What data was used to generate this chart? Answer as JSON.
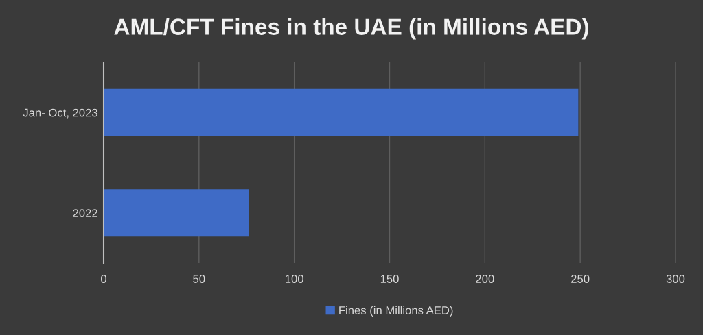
{
  "chart_data": {
    "type": "bar",
    "orientation": "horizontal",
    "title": "AML/CFT Fines in the UAE (in Millions AED)",
    "categories": [
      "Jan- Oct, 2023",
      "2022"
    ],
    "series": [
      {
        "name": "Fines (in Millions AED)",
        "color": "#3f6bc6",
        "values": [
          249,
          76
        ]
      }
    ],
    "xlim": [
      0,
      300
    ],
    "xticks": [
      0,
      50,
      100,
      150,
      200,
      250,
      300
    ],
    "grid": "x",
    "legend": "bottom"
  }
}
